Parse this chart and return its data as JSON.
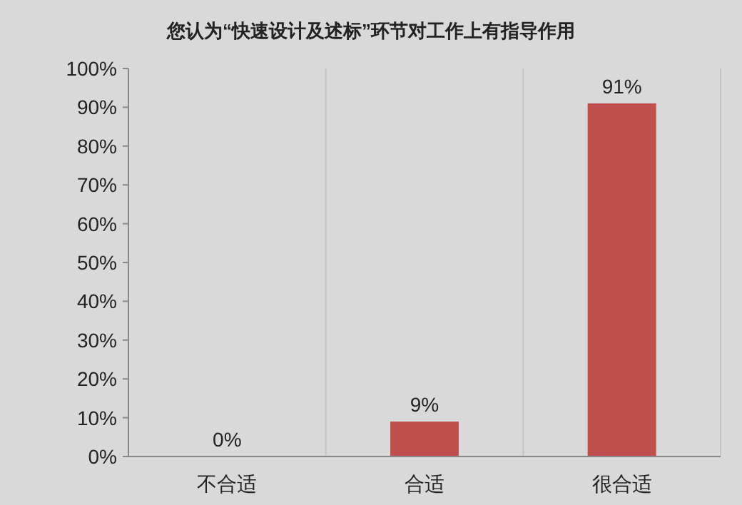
{
  "chart_data": {
    "type": "bar",
    "title": "您认为“快速设计及述标”环节对工作上有指导作用",
    "categories": [
      "不合适",
      "合适",
      "很合适"
    ],
    "values": [
      0,
      9,
      91
    ],
    "value_labels": [
      "0%",
      "9%",
      "91%"
    ],
    "color": "#c0504d",
    "ylim": [
      0,
      100
    ],
    "yticks": [
      {
        "value": 0,
        "label": "0%"
      },
      {
        "value": 10,
        "label": "10%"
      },
      {
        "value": 20,
        "label": "20%"
      },
      {
        "value": 30,
        "label": "30%"
      },
      {
        "value": 40,
        "label": "40%"
      },
      {
        "value": 50,
        "label": "50%"
      },
      {
        "value": 60,
        "label": "60%"
      },
      {
        "value": 70,
        "label": "70%"
      },
      {
        "value": 80,
        "label": "80%"
      },
      {
        "value": 90,
        "label": "90%"
      },
      {
        "value": 100,
        "label": "100%"
      }
    ],
    "grid": "x"
  }
}
